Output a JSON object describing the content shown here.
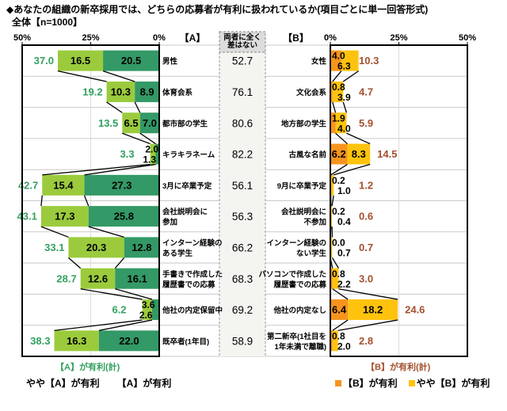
{
  "title": "◆あなたの組織の新卒採用では、どちらの応募者が有利に扱われているか(項目ごとに単一回答形式)",
  "subtitle": "全体【n=1000】",
  "columns": {
    "a_header": "【A】",
    "b_header": "【B】",
    "middle_header_lines": [
      "両者に全く",
      "差はない"
    ],
    "axis_ticks_left": [
      "50%",
      "25%",
      "0%"
    ],
    "axis_ticks_right": [
      "0%",
      "25%",
      "50%"
    ]
  },
  "colors": {
    "a_somewhat": "#9BCB3C",
    "a_strong": "#339966",
    "a_total_text": "#33A05F",
    "b_strong": "#F7941D",
    "b_somewhat": "#FFC30E",
    "b_total_text": "#A3502E",
    "frame": "#000000",
    "separator": "#C9C9C9",
    "middle_bg": "#F4F4F1",
    "middle_header_bg": "#DCDCDC"
  },
  "chart_data": {
    "type": "bar",
    "subtype": "diverging-paired-horizontal",
    "units": "%",
    "axis_max_percent": 50,
    "grid": "vertical line at 25%",
    "legend_position": "bottom",
    "legend": {
      "a_total": "【A】が有利(計)",
      "a_somewhat": "やや【A】が有利",
      "a_strong": "【A】が有利",
      "b_total": "【B】が有利(計)",
      "b_strong": "【B】が有利",
      "b_somewhat": "やや【B】が有利"
    },
    "middle_column_label": "両者に全く差はない",
    "rows": [
      {
        "a_label": [
          "男性"
        ],
        "a_somewhat": 16.5,
        "a_strong": 20.5,
        "a_total": 37.0,
        "neither": 52.7,
        "b_label": [
          "女性"
        ],
        "b_strong": 4.0,
        "b_somewhat": 6.3,
        "b_total": 10.3
      },
      {
        "a_label": [
          "体育会系"
        ],
        "a_somewhat": 10.3,
        "a_strong": 8.9,
        "a_total": 19.2,
        "neither": 76.1,
        "b_label": [
          "文化会系"
        ],
        "b_strong": 0.8,
        "b_somewhat": 3.9,
        "b_total": 4.7
      },
      {
        "a_label": [
          "都市部の学生"
        ],
        "a_somewhat": 6.5,
        "a_strong": 7.0,
        "a_total": 13.5,
        "neither": 80.6,
        "b_label": [
          "地方部の学生"
        ],
        "b_strong": 1.9,
        "b_somewhat": 4.0,
        "b_total": 5.9
      },
      {
        "a_label": [
          "キラキラネーム"
        ],
        "a_somewhat": 2.0,
        "a_strong": 1.3,
        "a_total": 3.3,
        "neither": 82.2,
        "b_label": [
          "古風な名前"
        ],
        "b_strong": 6.2,
        "b_somewhat": 8.3,
        "b_total": 14.5
      },
      {
        "a_label": [
          "3月に卒業予定"
        ],
        "a_somewhat": 15.4,
        "a_strong": 27.3,
        "a_total": 42.7,
        "neither": 56.1,
        "b_label": [
          "9月に卒業予定"
        ],
        "b_strong": 0.2,
        "b_somewhat": 1.0,
        "b_total": 1.2
      },
      {
        "a_label": [
          "会社説明会に",
          "参加"
        ],
        "a_somewhat": 17.3,
        "a_strong": 25.8,
        "a_total": 43.1,
        "neither": 56.3,
        "b_label": [
          "会社説明会に",
          "不参加"
        ],
        "b_strong": 0.2,
        "b_somewhat": 0.4,
        "b_total": 0.6
      },
      {
        "a_label": [
          "インターン経験の",
          "ある学生"
        ],
        "a_somewhat": 20.3,
        "a_strong": 12.8,
        "a_total": 33.1,
        "neither": 66.2,
        "b_label": [
          "インターン経験の",
          "ない学生"
        ],
        "b_strong": 0.0,
        "b_somewhat": 0.7,
        "b_total": 0.7
      },
      {
        "a_label": [
          "手書きで作成した",
          "履歴書での応募"
        ],
        "a_somewhat": 12.6,
        "a_strong": 16.1,
        "a_total": 28.7,
        "neither": 68.3,
        "b_label": [
          "パソコンで作成した",
          "履歴書での応募"
        ],
        "b_strong": 0.8,
        "b_somewhat": 2.2,
        "b_total": 3.0
      },
      {
        "a_label": [
          "他社の内定保留中"
        ],
        "a_somewhat": 3.6,
        "a_strong": 2.6,
        "a_total": 6.2,
        "neither": 69.2,
        "b_label": [
          "他社の内定なし"
        ],
        "b_strong": 6.4,
        "b_somewhat": 18.2,
        "b_total": 24.6
      },
      {
        "a_label": [
          "既卒者(1年目)"
        ],
        "a_somewhat": 16.3,
        "a_strong": 22.0,
        "a_total": 38.3,
        "neither": 58.9,
        "b_label": [
          "第二新卒(1社目を",
          "1年未満で離職)"
        ],
        "b_strong": 0.8,
        "b_somewhat": 2.0,
        "b_total": 2.8
      }
    ]
  }
}
